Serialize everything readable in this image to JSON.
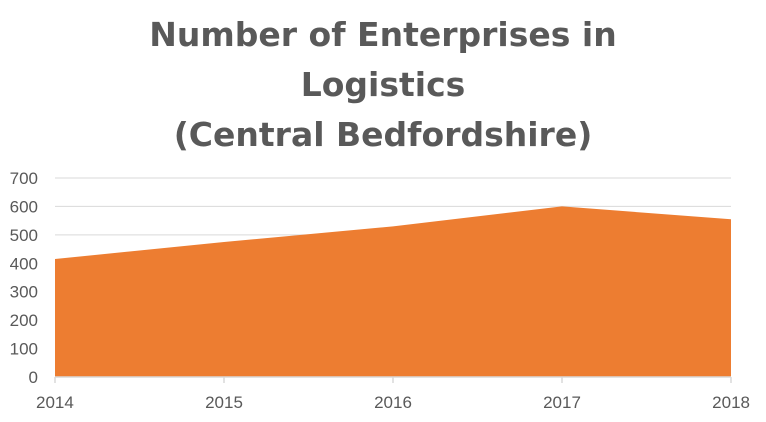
{
  "chart_data": {
    "type": "area",
    "title_lines": [
      "Number of Enterprises in",
      "Logistics",
      "(Central Bedfordshire)"
    ],
    "categories": [
      "2014",
      "2015",
      "2016",
      "2017",
      "2018"
    ],
    "series": [
      {
        "name": "Number of Enterprises",
        "values": [
          415,
          475,
          530,
          600,
          555
        ],
        "color": "#ED7D31"
      }
    ],
    "ylim": [
      0,
      700
    ],
    "yticks": [
      0,
      100,
      200,
      300,
      400,
      500,
      600,
      700
    ],
    "grid": true,
    "xlabel": "",
    "ylabel": ""
  },
  "colors": {
    "area": "#ED7D31",
    "grid": "#D9D9D9",
    "text": "#595959"
  }
}
